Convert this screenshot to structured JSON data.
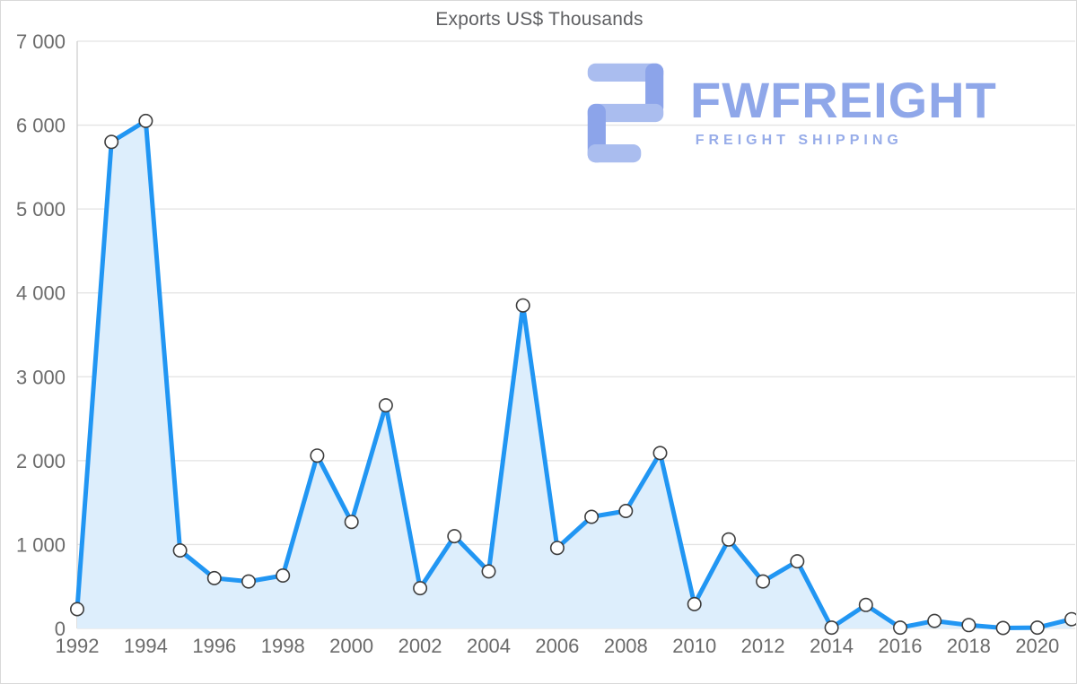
{
  "page": {
    "background": "#ffffff",
    "border_color": "#d9d9d9"
  },
  "chart_data": {
    "type": "area",
    "title": "Exports US$ Thousands",
    "x": [
      1992,
      1993,
      1994,
      1995,
      1996,
      1997,
      1998,
      1999,
      2000,
      2001,
      2002,
      2003,
      2004,
      2005,
      2006,
      2007,
      2008,
      2009,
      2010,
      2011,
      2012,
      2013,
      2014,
      2015,
      2016,
      2017,
      2018,
      2019,
      2020,
      2021
    ],
    "values": [
      230,
      5800,
      6050,
      930,
      600,
      560,
      630,
      2060,
      1270,
      2660,
      480,
      1100,
      680,
      3850,
      960,
      1330,
      1400,
      2090,
      290,
      1060,
      560,
      800,
      10,
      280,
      10,
      90,
      40,
      5,
      10,
      110
    ],
    "ylim": [
      0,
      7000
    ],
    "y_ticks": [
      0,
      1000,
      2000,
      3000,
      4000,
      5000,
      6000,
      7000
    ],
    "y_tick_labels": [
      "0",
      "1 000",
      "2 000",
      "3 000",
      "4 000",
      "5 000",
      "6 000",
      "7 000"
    ],
    "x_tick_labels": [
      "1992",
      "1994",
      "1996",
      "1998",
      "2000",
      "2002",
      "2004",
      "2006",
      "2008",
      "2010",
      "2012",
      "2014",
      "2016",
      "2018",
      "2020"
    ],
    "grid": true,
    "legend": "none",
    "xlabel": "",
    "ylabel": "",
    "line_color": "#2196f3",
    "fill_color": "#ddeefc",
    "marker_fill": "#ffffff",
    "marker_stroke": "#3d3d3d",
    "grid_color": "#e3e3e3",
    "axis_color": "#cfcfcf"
  },
  "watermark": {
    "brand": "FWFREIGHT",
    "tagline": "FREIGHT SHIPPING",
    "color": "#8fa7e9",
    "icon_light": "#aabdef",
    "icon_dark": "#8ca4ea"
  }
}
